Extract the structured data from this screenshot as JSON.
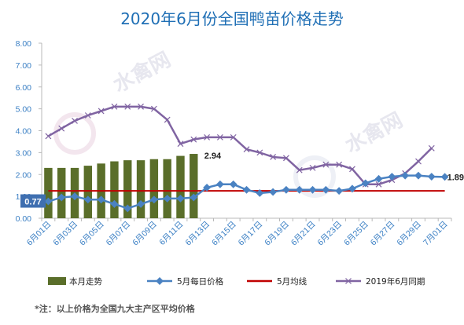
{
  "chart_data": {
    "type": "bar+line",
    "title": "2020年6月份全国鸭苗价格走势",
    "ylim": [
      0,
      8
    ],
    "yticks": [
      "0.00",
      "1.00",
      "2.00",
      "3.00",
      "4.00",
      "5.00",
      "6.00",
      "7.00",
      "8.00"
    ],
    "xtick_labels": [
      "6月01日",
      "6月03日",
      "6月05日",
      "6月07日",
      "6月09日",
      "6月11日",
      "6月13日",
      "6月15日",
      "6月17日",
      "6月19日",
      "6月21日",
      "6月23日",
      "6月25日",
      "6月27日",
      "6月29日",
      "7月01日"
    ],
    "num_days": 31,
    "series": [
      {
        "name": "本月走势",
        "kind": "bar",
        "color": "#5a6e2a",
        "values": [
          2.3,
          2.3,
          2.3,
          2.4,
          2.5,
          2.6,
          2.65,
          2.65,
          2.7,
          2.7,
          2.85,
          2.94
        ]
      },
      {
        "name": "5月每日价格",
        "kind": "line",
        "color": "#4a82c2",
        "values": [
          0.77,
          0.95,
          1.0,
          0.85,
          0.85,
          0.65,
          0.45,
          0.65,
          0.85,
          0.9,
          0.9,
          0.95,
          1.4,
          1.55,
          1.55,
          1.3,
          1.15,
          1.2,
          1.3,
          1.3,
          1.3,
          1.3,
          1.25,
          1.35,
          1.6,
          1.8,
          1.9,
          1.95,
          1.95,
          1.9,
          1.89
        ]
      },
      {
        "name": "5月均线",
        "kind": "line",
        "color": "#c00000",
        "values": [
          1.25,
          1.25,
          1.25,
          1.25,
          1.25,
          1.25,
          1.25,
          1.25,
          1.25,
          1.25,
          1.25,
          1.25,
          1.25,
          1.25,
          1.25,
          1.25,
          1.25,
          1.25,
          1.25,
          1.25,
          1.25,
          1.25,
          1.25,
          1.25,
          1.25,
          1.25,
          1.25,
          1.25,
          1.25,
          1.25,
          1.25
        ]
      },
      {
        "name": "2019年6月同期",
        "kind": "line",
        "color": "#8064a2",
        "values": [
          3.75,
          4.1,
          4.45,
          4.7,
          4.9,
          5.1,
          5.1,
          5.1,
          5.0,
          4.5,
          3.4,
          3.6,
          3.7,
          3.7,
          3.7,
          3.15,
          3.0,
          2.8,
          2.75,
          2.2,
          2.3,
          2.45,
          2.45,
          2.25,
          1.55,
          1.55,
          1.75,
          2.05,
          2.6,
          3.2,
          null
        ]
      }
    ],
    "data_labels": [
      {
        "text": "0.77",
        "series": "5月每日价格",
        "index": 0
      },
      {
        "text": "2.94",
        "series": "本月走势",
        "index": 11
      },
      {
        "text": "1.89",
        "series": "5月每日价格",
        "index": 30
      }
    ],
    "legend_position": "bottom",
    "grid": false
  },
  "note": "*注：以上价格为全国九大主产区平均价格",
  "watermark": "水禽网"
}
